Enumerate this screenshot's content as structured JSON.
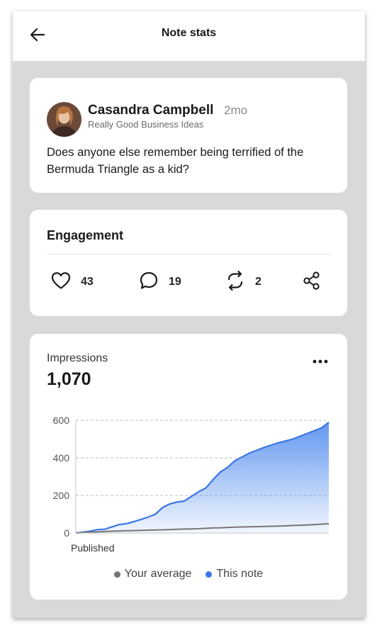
{
  "header": {
    "title": "Note stats",
    "back_icon": "arrow-left-icon"
  },
  "note": {
    "author": "Casandra Campbell",
    "time_ago": "2mo",
    "publication": "Really Good Business Ideas",
    "text": "Does anyone else remember being terrified of the Bermuda Triangle as a kid?"
  },
  "engagement": {
    "title": "Engagement",
    "likes": "43",
    "comments": "19",
    "restacks": "2",
    "icons": [
      "heart-icon",
      "comment-icon",
      "restack-icon",
      "share-icon"
    ]
  },
  "impressions": {
    "label": "Impressions",
    "value": "1,070"
  },
  "colors": {
    "this_note": "#3a76e6",
    "your_average": "#757575",
    "background": "#d9d9d9"
  },
  "chart_data": {
    "type": "area",
    "xlabel": "",
    "x_tick_labels": [
      "Published"
    ],
    "ylabel": "",
    "ylim": [
      0,
      600
    ],
    "yticks": [
      0,
      200,
      400,
      600
    ],
    "grid": "horizontal dashed",
    "legend_position": "bottom",
    "legend": [
      "Your average",
      "This note"
    ],
    "series": [
      {
        "name": "This note",
        "style": "area",
        "values": [
          0,
          5,
          10,
          18,
          20,
          33,
          45,
          50,
          60,
          72,
          85,
          100,
          135,
          155,
          165,
          170,
          195,
          220,
          240,
          285,
          325,
          350,
          385,
          405,
          425,
          440,
          455,
          468,
          480,
          490,
          500,
          515,
          530,
          545,
          560,
          590
        ]
      },
      {
        "name": "Your average",
        "style": "line",
        "values": [
          0,
          2,
          4,
          6,
          8,
          10,
          11,
          12,
          13,
          14,
          15,
          16,
          17,
          18,
          20,
          21,
          22,
          23,
          25,
          27,
          28,
          30,
          31,
          32,
          33,
          34,
          35,
          36,
          37,
          38,
          40,
          41,
          43,
          45,
          47,
          50
        ]
      }
    ]
  }
}
